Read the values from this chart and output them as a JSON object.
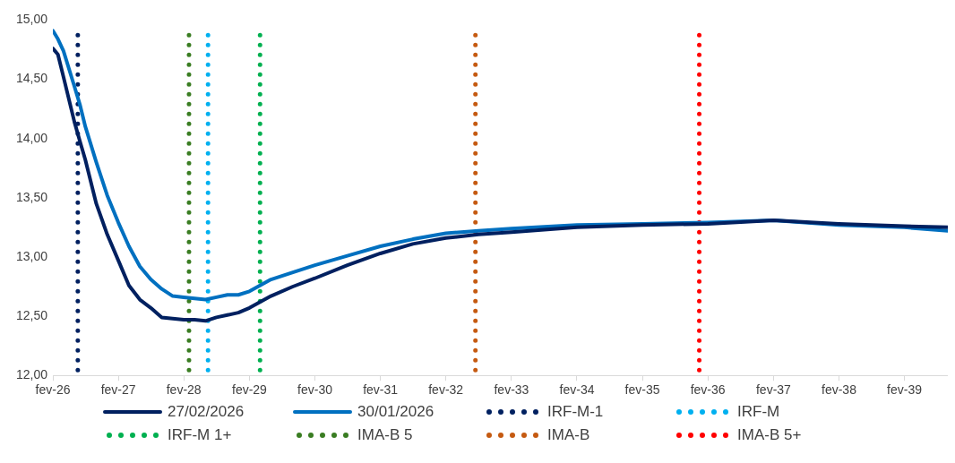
{
  "chart_data": {
    "type": "line",
    "x": [
      "2026-02",
      "2026-03",
      "2026-04",
      "2026-06",
      "2026-07",
      "2026-08",
      "2026-10",
      "2026-12",
      "2027-02",
      "2027-04",
      "2027-06",
      "2027-08",
      "2027-10",
      "2027-12",
      "2028-02",
      "2028-04",
      "2028-06",
      "2028-08",
      "2028-10",
      "2028-12",
      "2029-02",
      "2029-06",
      "2029-10",
      "2030-02",
      "2030-08",
      "2031-02",
      "2031-08",
      "2032-02",
      "2032-08",
      "2033-02",
      "2034-02",
      "2035-02",
      "2036-02",
      "2037-02",
      "2038-02",
      "2039-02",
      "2039-10"
    ],
    "series": [
      {
        "name": "27/02/2026",
        "color": "#002060",
        "values": [
          14.76,
          14.71,
          14.52,
          14.14,
          13.98,
          13.82,
          13.45,
          13.19,
          12.97,
          12.76,
          12.64,
          12.57,
          12.49,
          12.48,
          12.47,
          12.47,
          12.46,
          12.49,
          12.51,
          12.53,
          12.57,
          12.67,
          12.75,
          12.82,
          12.93,
          13.03,
          13.11,
          13.16,
          13.19,
          13.21,
          13.25,
          13.27,
          13.28,
          13.31,
          13.28,
          13.26,
          13.25
        ]
      },
      {
        "name": "30/01/2026",
        "color": "#0070c0",
        "values": [
          14.91,
          14.84,
          14.74,
          14.44,
          14.29,
          14.1,
          13.8,
          13.52,
          13.29,
          13.09,
          12.92,
          12.81,
          12.73,
          12.67,
          12.66,
          12.65,
          12.64,
          12.66,
          12.68,
          12.68,
          12.71,
          12.81,
          12.87,
          12.93,
          13.01,
          13.09,
          13.15,
          13.2,
          13.22,
          13.24,
          13.27,
          13.28,
          13.29,
          13.31,
          13.27,
          13.25,
          13.22
        ]
      }
    ],
    "ref_lines": [
      {
        "axis": "x",
        "value": "2026-06-20",
        "label": "IRF-M-1",
        "color": "#002060",
        "line_style": "dotted"
      },
      {
        "axis": "x",
        "value": "2028-06-15",
        "label": "IRF-M",
        "color": "#00b0f0",
        "line_style": "dotted"
      },
      {
        "axis": "x",
        "value": "2029-04",
        "label": "IRF-M 1+",
        "color": "#00b050",
        "line_style": "dotted"
      },
      {
        "axis": "x",
        "value": "2028-03",
        "label": "IMA-B 5",
        "color": "#3a7d22",
        "line_style": "dotted"
      },
      {
        "axis": "x",
        "value": "2032-07-15",
        "label": "IMA-B",
        "color": "#c55a11",
        "line_style": "dotted"
      },
      {
        "axis": "x",
        "value": "2035-12-15",
        "label": "IMA-B 5+",
        "color": "#ff0000",
        "line_style": "dotted"
      }
    ],
    "xlim": [
      "2026-02",
      "2039-10"
    ],
    "xticks": [
      {
        "value": "2026-02",
        "label": "fev-26"
      },
      {
        "value": "2027-02",
        "label": "fev-27"
      },
      {
        "value": "2028-02",
        "label": "fev-28"
      },
      {
        "value": "2029-02",
        "label": "fev-29"
      },
      {
        "value": "2030-02",
        "label": "fev-30"
      },
      {
        "value": "2031-02",
        "label": "fev-31"
      },
      {
        "value": "2032-02",
        "label": "fev-32"
      },
      {
        "value": "2033-02",
        "label": "fev-33"
      },
      {
        "value": "2034-02",
        "label": "fev-34"
      },
      {
        "value": "2035-02",
        "label": "fev-35"
      },
      {
        "value": "2036-02",
        "label": "fev-36"
      },
      {
        "value": "2037-02",
        "label": "fev-37"
      },
      {
        "value": "2038-02",
        "label": "fev-38"
      },
      {
        "value": "2039-02",
        "label": "fev-39"
      }
    ],
    "ylim": [
      12,
      15
    ],
    "yticks": [
      {
        "value": 12,
        "label": "12,00"
      },
      {
        "value": 12.5,
        "label": "12,50"
      },
      {
        "value": 13,
        "label": "13,00"
      },
      {
        "value": 13.5,
        "label": "13,50"
      },
      {
        "value": 14,
        "label": "14,00"
      },
      {
        "value": 14.5,
        "label": "14,50"
      },
      {
        "value": 15,
        "label": "15,00"
      }
    ],
    "grid": false,
    "legend": "bottom",
    "marker": "none",
    "line_style": "solid"
  }
}
